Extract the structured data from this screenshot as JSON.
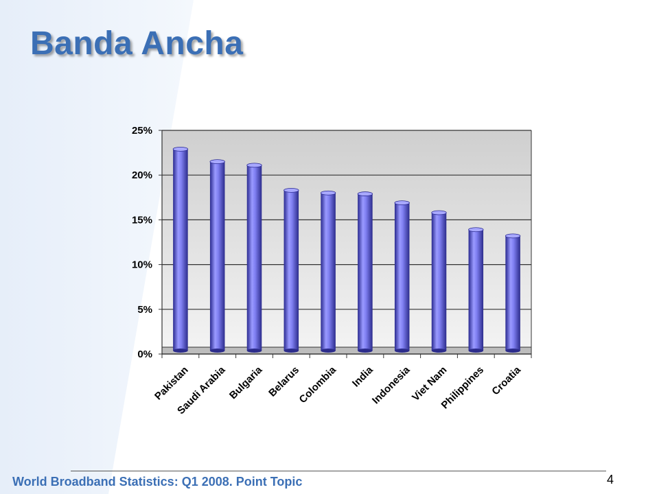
{
  "slide": {
    "title": "Banda Ancha",
    "footer": "World Broadband Statistics: Q1 2008. Point Topic",
    "page_number": "4"
  },
  "colors": {
    "title": "#3b6fb5",
    "bar_fill": "#7b7bf0",
    "plot_background": "#d9d9d9",
    "decor_band": "#e6eef9"
  },
  "chart_data": {
    "type": "bar",
    "categories": [
      "Pakistan",
      "Saudi Arabia",
      "Bulgaria",
      "Belarus",
      "Colombia",
      "India",
      "Indonesia",
      "Viet Nam",
      "Philippines",
      "Croatia"
    ],
    "values": [
      22.9,
      21.5,
      21.1,
      18.3,
      18.0,
      17.9,
      16.9,
      15.8,
      13.9,
      13.2
    ],
    "value_unit": "%",
    "ylim": [
      0,
      25
    ],
    "yticks": [
      0,
      5,
      10,
      15,
      20,
      25
    ],
    "ytick_labels": [
      "0%",
      "5%",
      "10%",
      "15%",
      "20%",
      "25%"
    ],
    "grid": true,
    "legend": "none",
    "title": "",
    "xlabel": "",
    "ylabel": ""
  }
}
